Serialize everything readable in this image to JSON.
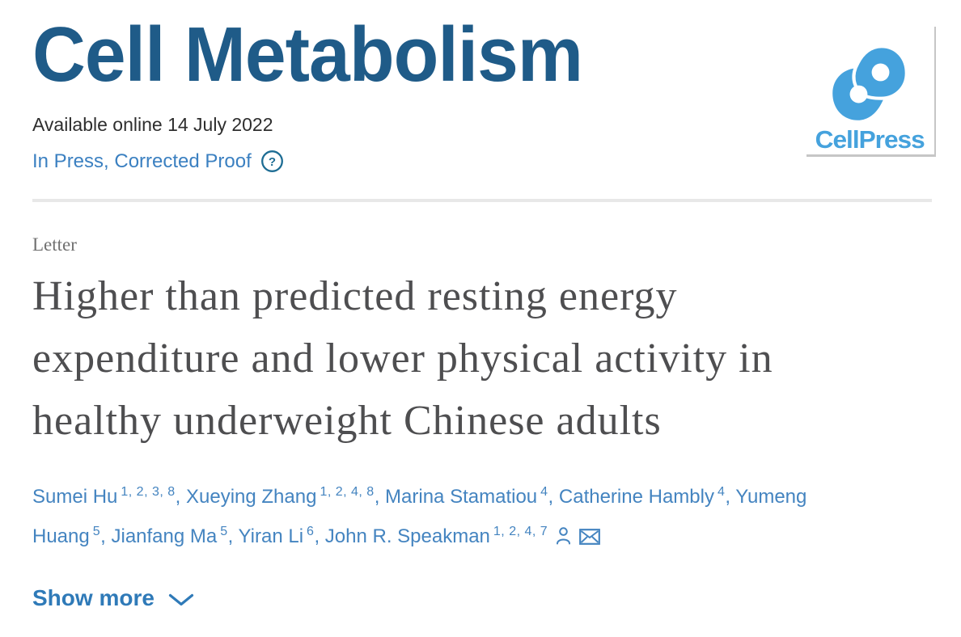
{
  "journal": {
    "name": "Cell Metabolism"
  },
  "header": {
    "available_online": "Available online 14 July 2022",
    "status_link": "In Press, Corrected Proof"
  },
  "logo": {
    "text": "CellPress"
  },
  "article": {
    "type_label": "Letter",
    "title_lines": [
      "Higher than predicted resting energy",
      "expenditure and lower physical activity in",
      "healthy underweight Chinese adults"
    ],
    "authors": [
      {
        "name": "Sumei Hu",
        "sup": "1, 2, 3, 8"
      },
      {
        "name": "Xueying Zhang",
        "sup": "1, 2, 4, 8"
      },
      {
        "name": "Marina Stamatiou",
        "sup": "4"
      },
      {
        "name": "Catherine Hambly",
        "sup": "4"
      },
      {
        "name": "Yumeng Huang",
        "sup": "5"
      },
      {
        "name": "Jianfang Ma",
        "sup": "5"
      },
      {
        "name": "Yiran Li",
        "sup": "6"
      },
      {
        "name": "John R. Speakman",
        "sup": "1, 2, 4, 7",
        "corresponding": true
      }
    ],
    "show_more_label": "Show more"
  },
  "icons": {
    "help": "question-mark-circle-icon",
    "corresponding_author": "person-icon",
    "email": "envelope-icon",
    "show_more": "chevron-down-icon",
    "logo": "cellpress-mark-icon"
  },
  "colors": {
    "journal": "#1f5b88",
    "body": "#2e2e2e",
    "link": "#3b80c1",
    "author": "#4484c0",
    "showmore": "#2f7ab8",
    "help": "#1e6d94",
    "logo": "#45a2dd",
    "logo_border": "#8a8a8a",
    "title": "#4e4e50",
    "type": "#717171",
    "divider": "#e8e8e8"
  }
}
